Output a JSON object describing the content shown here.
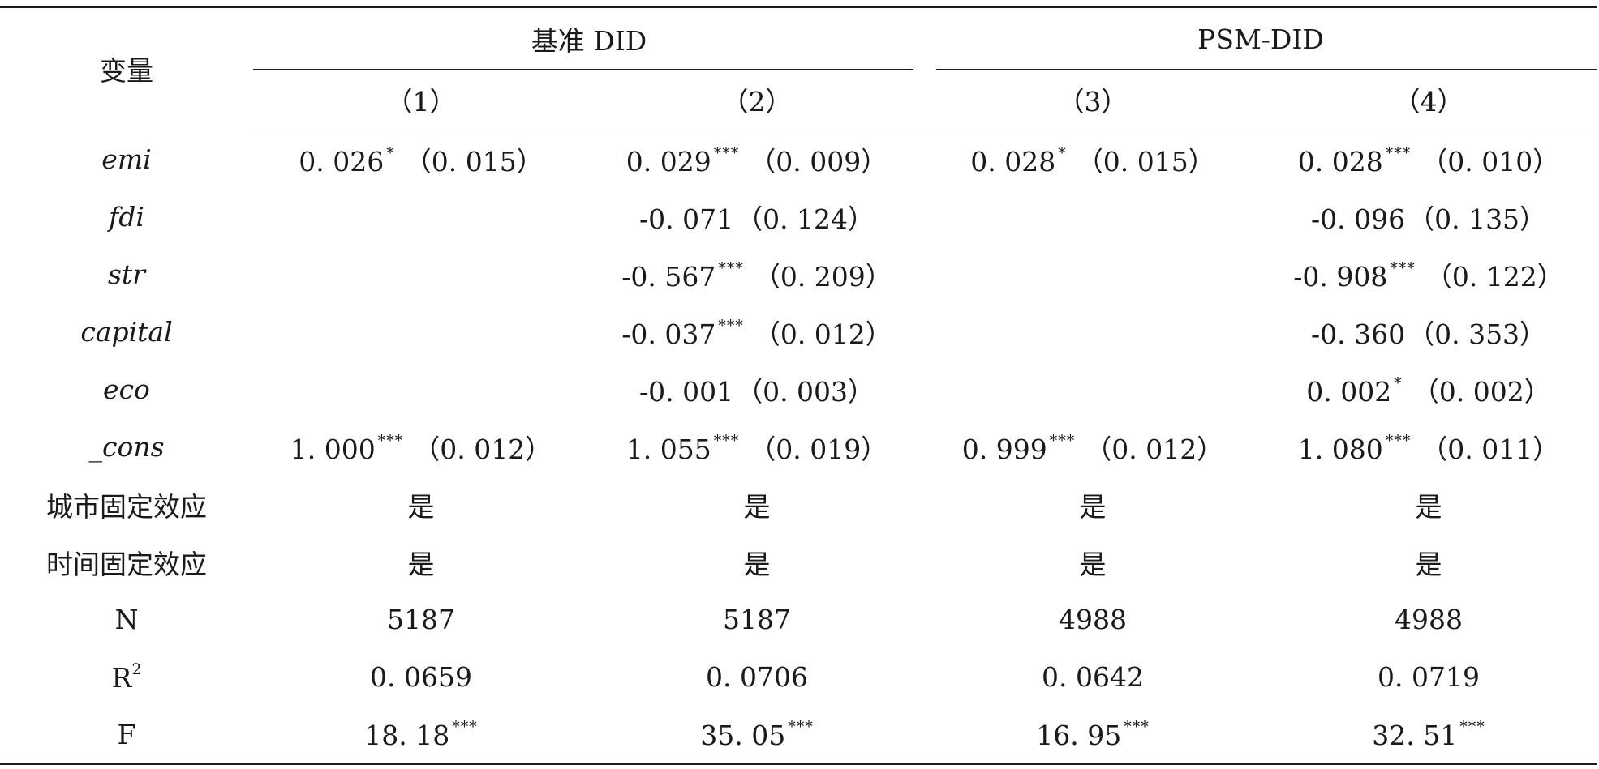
{
  "header": {
    "variable_label": "变量",
    "group1_label": "基准 DID",
    "group2_label": "PSM-DID",
    "col_labels": [
      "（1）",
      "（2）",
      "（3）",
      "（4）"
    ]
  },
  "rows": [
    {
      "label": "emi",
      "cells": [
        {
          "coef": "0. 026",
          "star": "*",
          "se": "（0. 015）"
        },
        {
          "coef": "0. 029",
          "star": "***",
          "se": "（0. 009）"
        },
        {
          "coef": "0. 028",
          "star": "*",
          "se": "（0. 015）"
        },
        {
          "coef": "0. 028",
          "star": "***",
          "se": "（0. 010）"
        }
      ]
    },
    {
      "label": "fdi",
      "cells": [
        {
          "coef": "",
          "star": "",
          "se": ""
        },
        {
          "coef": "-0. 071",
          "star": "",
          "se": "（0. 124）"
        },
        {
          "coef": "",
          "star": "",
          "se": ""
        },
        {
          "coef": "-0. 096",
          "star": "",
          "se": "（0. 135）"
        }
      ]
    },
    {
      "label": "str",
      "cells": [
        {
          "coef": "",
          "star": "",
          "se": ""
        },
        {
          "coef": "-0. 567",
          "star": "***",
          "se": "（0. 209）"
        },
        {
          "coef": "",
          "star": "",
          "se": ""
        },
        {
          "coef": "-0. 908",
          "star": "***",
          "se": "（0. 122）"
        }
      ]
    },
    {
      "label": "capital",
      "cells": [
        {
          "coef": "",
          "star": "",
          "se": ""
        },
        {
          "coef": "-0. 037",
          "star": "***",
          "se": "（0. 012）"
        },
        {
          "coef": "",
          "star": "",
          "se": ""
        },
        {
          "coef": "-0. 360",
          "star": "",
          "se": "（0. 353）"
        }
      ]
    },
    {
      "label": "eco",
      "cells": [
        {
          "coef": "",
          "star": "",
          "se": ""
        },
        {
          "coef": "-0. 001",
          "star": "",
          "se": "（0. 003）"
        },
        {
          "coef": "",
          "star": "",
          "se": ""
        },
        {
          "coef": "0. 002",
          "star": "*",
          "se": "（0. 002）"
        }
      ]
    },
    {
      "label": "_cons",
      "cells": [
        {
          "coef": "1. 000",
          "star": "***",
          "se": "（0. 012）"
        },
        {
          "coef": "1. 055",
          "star": "***",
          "se": "（0. 019）"
        },
        {
          "coef": "0. 999",
          "star": "***",
          "se": "（0. 012）"
        },
        {
          "coef": "1. 080",
          "star": "***",
          "se": "（0. 011）"
        }
      ]
    }
  ],
  "fixed_effects": [
    {
      "label": "城市固定效应",
      "values": [
        "是",
        "是",
        "是",
        "是"
      ]
    },
    {
      "label": "时间固定效应",
      "values": [
        "是",
        "是",
        "是",
        "是"
      ]
    }
  ],
  "stats": {
    "n": {
      "label": "N",
      "values": [
        "5187",
        "5187",
        "4988",
        "4988"
      ]
    },
    "r2": {
      "label": "R",
      "sup": "2",
      "values": [
        "0. 0659",
        "0. 0706",
        "0. 0642",
        "0. 0719"
      ]
    },
    "f": {
      "label": "F",
      "values": [
        {
          "coef": "18. 18",
          "star": "***"
        },
        {
          "coef": "35. 05",
          "star": "***"
        },
        {
          "coef": "16. 95",
          "star": "***"
        },
        {
          "coef": "32. 51",
          "star": "***"
        }
      ]
    }
  }
}
